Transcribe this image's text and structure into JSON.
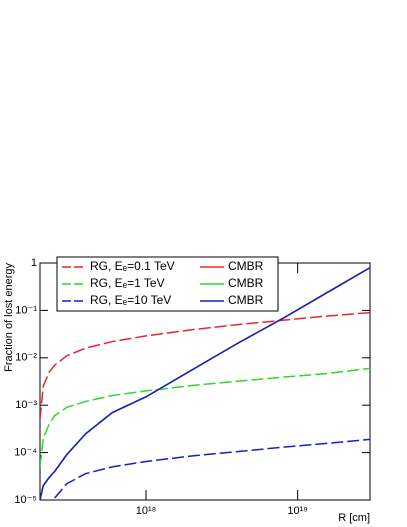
{
  "chart_data": {
    "type": "line",
    "xlabel": "R [cm]",
    "ylabel": "Fraction of lost energy",
    "xlog": true,
    "ylog": true,
    "xlim": [
      2e+17,
      3e+19
    ],
    "ylim": [
      1e-05,
      1
    ],
    "xticks": [
      {
        "value": 1e+18,
        "label": "10¹⁸"
      },
      {
        "value": 1e+19,
        "label": "10¹⁹"
      }
    ],
    "yticks": [
      {
        "value": 1e-05,
        "label": "10⁻⁵"
      },
      {
        "value": 0.0001,
        "label": "10⁻⁴"
      },
      {
        "value": 0.001,
        "label": "10⁻³"
      },
      {
        "value": 0.01,
        "label": "10⁻²"
      },
      {
        "value": 0.1,
        "label": "10⁻¹"
      },
      1
    ],
    "x": [
      2e+17,
      2.1e+17,
      2.3e+17,
      2.5e+17,
      3e+17,
      4e+17,
      6e+17,
      1e+18,
      2e+18,
      4e+18,
      8e+18,
      1.5e+19,
      3e+19
    ],
    "legend": "upper left",
    "series": [
      {
        "name": "RG, Eₑ=0.1 TeV",
        "color": "#e8262a",
        "dashed": true,
        "values": [
          0.0005,
          0.0025,
          0.005,
          0.007,
          0.011,
          0.016,
          0.022,
          0.029,
          0.039,
          0.05,
          0.062,
          0.075,
          0.09
        ]
      },
      {
        "name": "RG, Eₑ=1 TeV",
        "color": "#2bd92b",
        "dashed": true,
        "values": [
          5e-05,
          0.0002,
          0.0004,
          0.0006,
          0.0009,
          0.0012,
          0.0016,
          0.002,
          0.0026,
          0.0032,
          0.0039,
          0.0046,
          0.006
        ]
      },
      {
        "name": "RG, Eₑ=10 TeV",
        "color": "#1c1cc8",
        "dashed": true,
        "values": [
          null,
          null,
          null,
          1.1e-05,
          2.2e-05,
          3.6e-05,
          5e-05,
          6.5e-05,
          8.5e-05,
          0.000105,
          0.00013,
          0.000155,
          0.00019
        ]
      },
      {
        "name": "CMBR",
        "color": "#e8262a",
        "dashed": false,
        "values": [
          1e-05,
          2e-05,
          3e-05,
          4e-05,
          9e-05,
          0.00025,
          0.0007,
          0.0015,
          0.0055,
          0.02,
          0.068,
          0.22,
          0.8
        ]
      },
      {
        "name": "CMBR",
        "color": "#2bd92b",
        "dashed": false,
        "values": [
          1e-05,
          2e-05,
          3e-05,
          4e-05,
          9e-05,
          0.00025,
          0.0007,
          0.0015,
          0.0055,
          0.02,
          0.068,
          0.22,
          0.8
        ]
      },
      {
        "name": "CMBR",
        "color": "#1c1cc8",
        "dashed": false,
        "values": [
          1e-05,
          2e-05,
          3e-05,
          4e-05,
          9e-05,
          0.00025,
          0.0007,
          0.0015,
          0.0055,
          0.02,
          0.068,
          0.22,
          0.8
        ]
      }
    ]
  }
}
